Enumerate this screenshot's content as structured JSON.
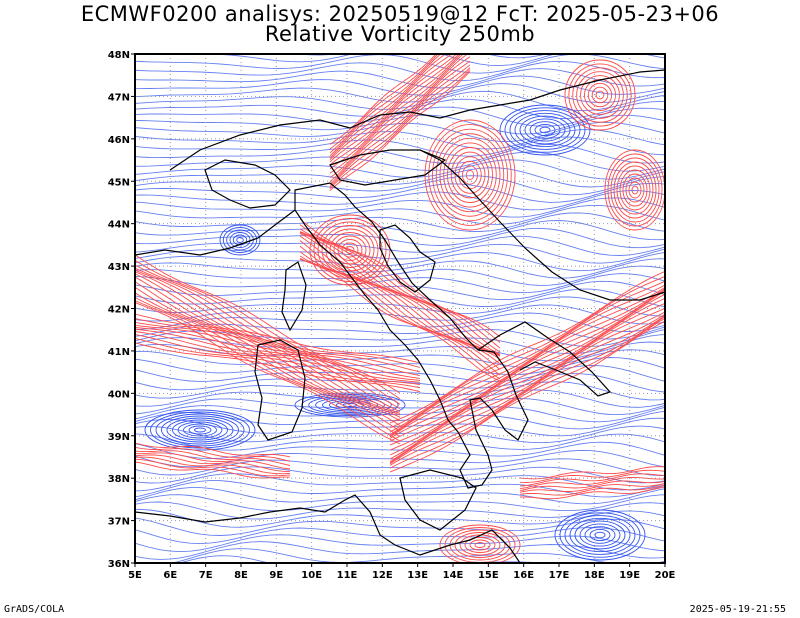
{
  "header": {
    "title_line1": "ECMWF0200 analisys: 20250519@12 FcT: 2025-05-23+06",
    "title_line2": "Relative Vorticity 250mb"
  },
  "footer": {
    "left": "GrADS/COLA",
    "right": "2025-05-19-21:55"
  },
  "map": {
    "lon_range": [
      5,
      20
    ],
    "lat_range": [
      36,
      48
    ],
    "lon_labels": [
      "5E",
      "6E",
      "7E",
      "8E",
      "9E",
      "10E",
      "11E",
      "12E",
      "13E",
      "14E",
      "15E",
      "16E",
      "17E",
      "18E",
      "19E",
      "20E"
    ],
    "lat_labels": [
      "36N",
      "37N",
      "38N",
      "39N",
      "40N",
      "41N",
      "42N",
      "43N",
      "44N",
      "45N",
      "46N",
      "47N",
      "48N"
    ],
    "colors": {
      "positive": "#ff4a4a",
      "negative": "#3355ee",
      "coast": "#000000",
      "grid": "#9a9aaa"
    }
  }
}
